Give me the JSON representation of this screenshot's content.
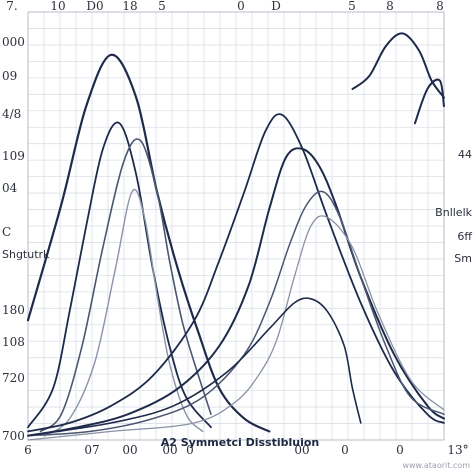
{
  "chart_data": {
    "type": "line",
    "title": "A2 Symmetci Disstibluion",
    "xlabel": "",
    "ylabel": "",
    "x_top_ticks": [
      "7.",
      "10",
      "D0",
      "18",
      "5",
      "0",
      "D",
      "5",
      "8",
      "8"
    ],
    "x_bottom_ticks": [
      "6",
      "07",
      "00",
      "00",
      "0"
    ],
    "x_bottom_right_ticks": [
      "00",
      "0",
      "0",
      "13°"
    ],
    "y_left_ticks": [
      "000",
      "09",
      "4/8",
      "109",
      "04",
      "C",
      "Shgtutrk",
      "180",
      "108",
      "720",
      "700"
    ],
    "y_right_labels": [
      "44",
      "Bnllelk",
      "6ff",
      "Sm"
    ],
    "watermark": "www.ataorit.com",
    "grid": true,
    "xlim": [
      0,
      100
    ],
    "ylim": [
      0,
      100
    ],
    "colors": {
      "dark": "#1e2a4a",
      "mid": "#4b5670",
      "light": "#8a92a6",
      "grid": "#dcdfe6"
    },
    "series": [
      {
        "x": [
          0,
          8,
          14,
          20,
          26,
          31,
          36,
          41,
          46,
          52,
          58
        ],
        "values": [
          28,
          55,
          78,
          90,
          80,
          58,
          40,
          25,
          12,
          5,
          2
        ]
      },
      {
        "x": [
          0,
          6,
          10,
          14,
          18,
          22,
          26,
          30,
          34,
          38,
          44
        ],
        "values": [
          3,
          12,
          30,
          50,
          68,
          74,
          62,
          40,
          22,
          10,
          3
        ]
      },
      {
        "x": [
          3,
          8,
          13,
          18,
          23,
          27,
          31,
          34,
          37,
          40,
          44
        ],
        "values": [
          2,
          6,
          22,
          45,
          65,
          70,
          58,
          42,
          28,
          18,
          6
        ]
      },
      {
        "x": [
          4,
          10,
          16,
          21,
          25,
          28,
          31,
          34,
          38,
          42
        ],
        "values": [
          1,
          5,
          18,
          40,
          58,
          52,
          34,
          18,
          6,
          2
        ]
      },
      {
        "x": [
          0,
          10,
          20,
          30,
          40,
          46,
          52,
          57,
          61,
          66,
          72,
          80,
          88,
          96,
          100
        ],
        "values": [
          2,
          4,
          8,
          15,
          28,
          42,
          58,
          72,
          76,
          68,
          52,
          32,
          16,
          6,
          4
        ]
      },
      {
        "x": [
          0,
          12,
          24,
          36,
          46,
          53,
          58,
          62,
          66,
          70,
          74,
          80,
          88,
          96,
          100
        ],
        "values": [
          1,
          3,
          6,
          12,
          22,
          36,
          54,
          66,
          68,
          64,
          55,
          38,
          20,
          8,
          5
        ]
      },
      {
        "x": [
          0,
          15,
          30,
          42,
          52,
          58,
          63,
          67,
          71,
          75,
          80,
          86,
          92,
          100
        ],
        "values": [
          1,
          2,
          5,
          10,
          20,
          32,
          46,
          55,
          58,
          52,
          38,
          22,
          10,
          6
        ]
      },
      {
        "x": [
          0,
          20,
          40,
          50,
          56,
          60,
          64,
          68,
          72,
          78,
          84,
          92,
          100
        ],
        "values": [
          0,
          2,
          4,
          9,
          16,
          24,
          38,
          50,
          52,
          45,
          30,
          14,
          7
        ]
      },
      {
        "x": [
          0,
          20,
          35,
          48,
          58,
          64,
          68,
          72,
          76,
          78,
          80
        ],
        "values": [
          1,
          4,
          8,
          16,
          26,
          32,
          33,
          30,
          22,
          12,
          4
        ]
      },
      {
        "x": [
          78,
          82,
          86,
          90,
          94,
          97,
          100
        ],
        "values": [
          82,
          85,
          92,
          95,
          91,
          84,
          80
        ]
      },
      {
        "x": [
          93,
          96,
          99,
          100
        ],
        "values": [
          74,
          82,
          84,
          78
        ]
      }
    ]
  }
}
